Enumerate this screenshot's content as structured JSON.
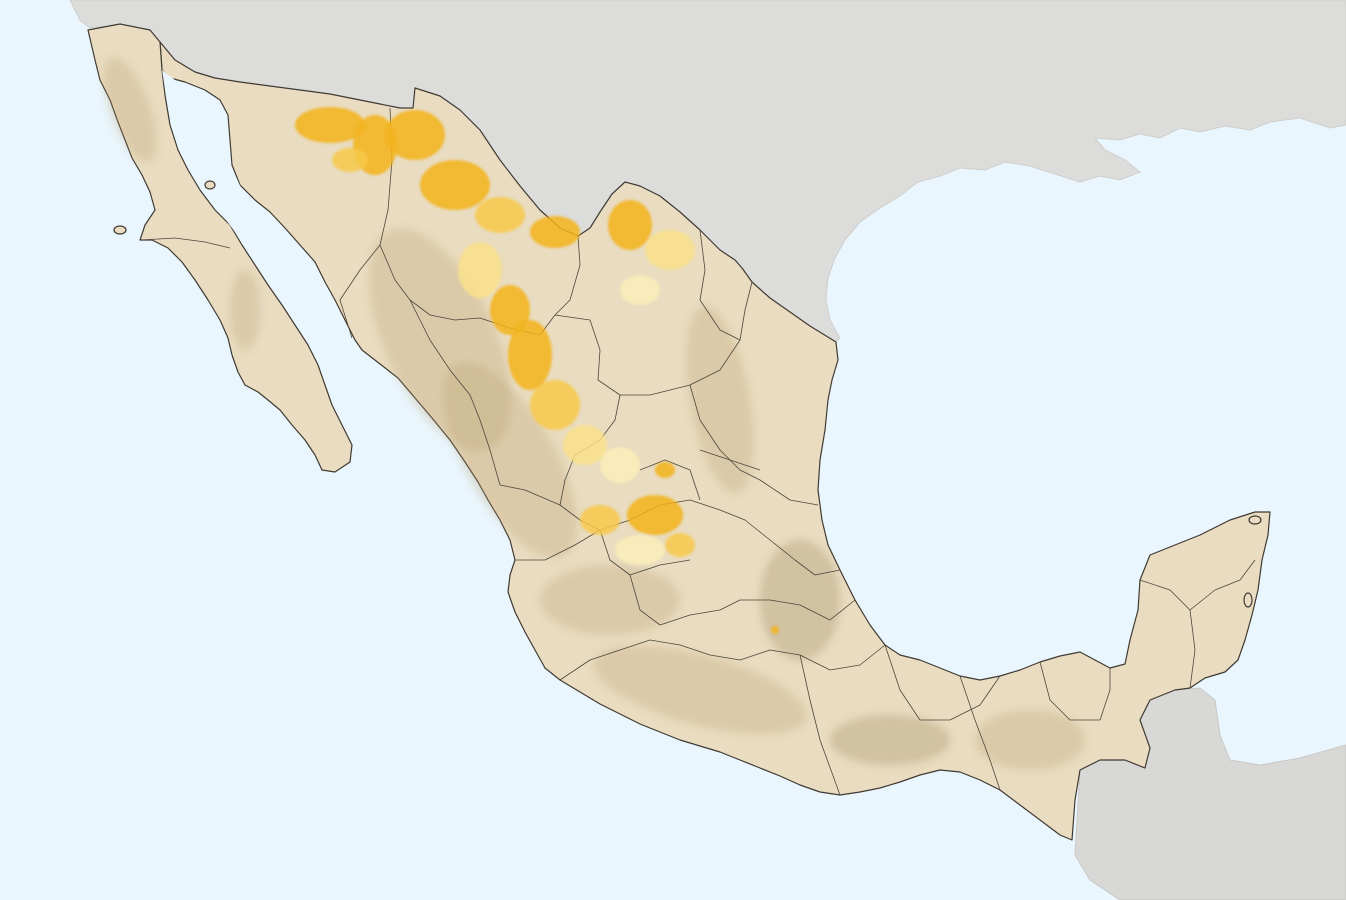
{
  "map": {
    "region": "Mexico",
    "colors": {
      "ocean": "#eaf6fd",
      "neighboring_land": "#dcdcda",
      "mexico_land": "#e9dcc0",
      "state_border": "#4d463c",
      "relief_shading": "#b89d6a",
      "highlight_high": "#f3b31b",
      "highlight_low": "#f9e08a"
    },
    "highlight": {
      "description_visible": false,
      "palette": [
        "#f3b31b",
        "#f7c94a",
        "#f9e08a",
        "#fbeeb8"
      ]
    }
  }
}
